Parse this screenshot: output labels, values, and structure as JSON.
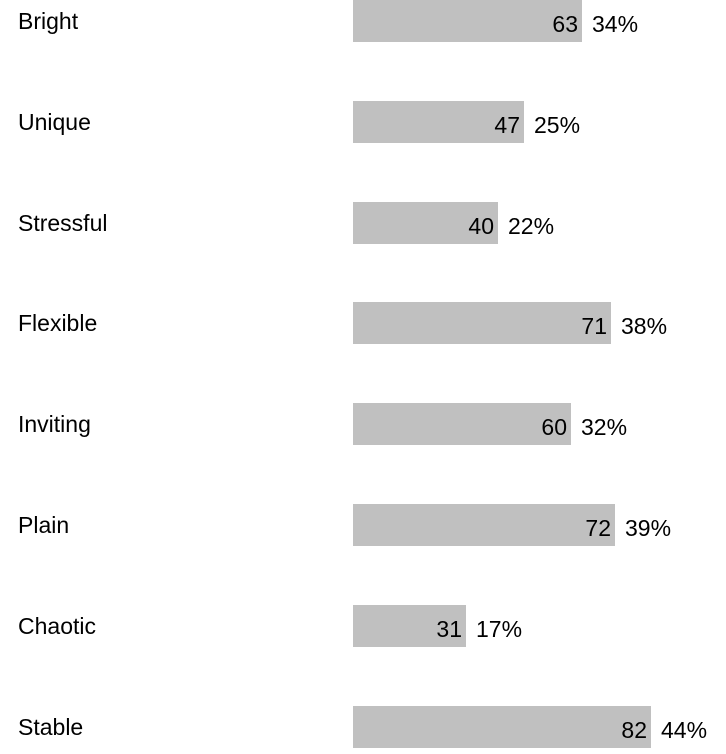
{
  "chart_data": {
    "type": "bar",
    "orientation": "horizontal",
    "categories": [
      "Bright",
      "Unique",
      "Stressful",
      "Flexible",
      "Inviting",
      "Plain",
      "Chaotic",
      "Stable"
    ],
    "values": [
      63,
      47,
      40,
      71,
      60,
      72,
      31,
      82
    ],
    "percentages": [
      "34%",
      "25%",
      "22%",
      "38%",
      "32%",
      "39%",
      "17%",
      "44%"
    ],
    "bar_color": "#c0c0c0",
    "title": "",
    "xlabel": "",
    "ylabel": "",
    "grid": false,
    "legend": "none"
  }
}
